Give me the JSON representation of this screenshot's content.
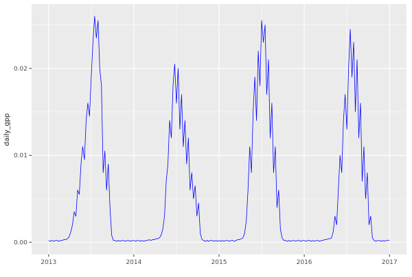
{
  "chart_data": {
    "type": "line",
    "title": "",
    "xlabel": "",
    "ylabel": "daily_gpp",
    "legend": "none",
    "grid": "on",
    "x_axis": {
      "lim": [
        2012.8,
        2017.2
      ],
      "ticks": [
        2013,
        2014,
        2015,
        2016,
        2017
      ],
      "tick_labels": [
        "2013",
        "2014",
        "2015",
        "2016",
        "2017"
      ],
      "minor_ticks": [
        2013.5,
        2014.5,
        2015.5,
        2016.5
      ]
    },
    "y_axis": {
      "lim": [
        -0.0014,
        0.0274
      ],
      "ticks": [
        0,
        0.01,
        0.02
      ],
      "tick_labels": [
        "0.00",
        "0.01",
        "0.02"
      ],
      "minor_ticks": [
        0.005,
        0.015,
        0.025
      ]
    },
    "series": [
      {
        "name": "daily_gpp",
        "color": "#0000FF",
        "x_start": 2013.0,
        "x_step": 0.02,
        "values": [
          0.0002,
          0.0001,
          0.0002,
          0.0001,
          0.0002,
          0.0002,
          0.0001,
          0.0002,
          0.0002,
          0.0003,
          0.0003,
          0.0004,
          0.0006,
          0.0012,
          0.002,
          0.0035,
          0.003,
          0.006,
          0.0055,
          0.009,
          0.011,
          0.0095,
          0.014,
          0.016,
          0.0145,
          0.019,
          0.023,
          0.026,
          0.0235,
          0.0255,
          0.02,
          0.018,
          0.008,
          0.0105,
          0.006,
          0.009,
          0.004,
          0.0008,
          0.0002,
          0.0002,
          0.0001,
          0.0002,
          0.0001,
          0.0002,
          0.0002,
          0.0001,
          0.0002,
          0.0002,
          0.0001,
          0.0002,
          0.0002,
          0.0001,
          0.0002,
          0.0002,
          0.0001,
          0.0002,
          0.0001,
          0.0002,
          0.0002,
          0.0003,
          0.0002,
          0.0003,
          0.0003,
          0.0004,
          0.0004,
          0.0005,
          0.0008,
          0.0015,
          0.003,
          0.007,
          0.009,
          0.014,
          0.012,
          0.018,
          0.0205,
          0.016,
          0.02,
          0.013,
          0.017,
          0.011,
          0.014,
          0.009,
          0.012,
          0.006,
          0.008,
          0.005,
          0.0065,
          0.003,
          0.0045,
          0.001,
          0.0003,
          0.0002,
          0.0001,
          0.0002,
          0.0001,
          0.0002,
          0.0002,
          0.0001,
          0.0002,
          0.0001,
          0.0002,
          0.0001,
          0.0002,
          0.0001,
          0.0002,
          0.0002,
          0.0001,
          0.0002,
          0.0002,
          0.0001,
          0.0002,
          0.0003,
          0.0003,
          0.0004,
          0.0005,
          0.001,
          0.0025,
          0.006,
          0.011,
          0.008,
          0.015,
          0.019,
          0.014,
          0.022,
          0.018,
          0.0255,
          0.023,
          0.025,
          0.017,
          0.021,
          0.012,
          0.016,
          0.008,
          0.011,
          0.004,
          0.006,
          0.0015,
          0.0005,
          0.0002,
          0.0002,
          0.0001,
          0.0002,
          0.0001,
          0.0002,
          0.0002,
          0.0001,
          0.0002,
          0.0002,
          0.0001,
          0.0002,
          0.0002,
          0.0001,
          0.0002,
          0.0002,
          0.0001,
          0.0002,
          0.0001,
          0.0002,
          0.0002,
          0.0001,
          0.0002,
          0.0002,
          0.0003,
          0.0003,
          0.0004,
          0.0004,
          0.0005,
          0.0012,
          0.003,
          0.002,
          0.006,
          0.01,
          0.008,
          0.014,
          0.017,
          0.013,
          0.02,
          0.0245,
          0.019,
          0.023,
          0.015,
          0.021,
          0.012,
          0.016,
          0.007,
          0.011,
          0.005,
          0.008,
          0.002,
          0.003,
          0.0005,
          0.0002,
          0.0001,
          0.0002,
          0.0002,
          0.0001,
          0.0002,
          0.0001,
          0.0002,
          0.0002,
          0.0002
        ]
      }
    ],
    "style": {
      "panel_bg": "#EBEBEB",
      "grid_color": "#FFFFFF",
      "axis_text_color": "#4D4D4D",
      "axis_title_color": "#1A1A1A",
      "tick_mark_color": "#333333"
    }
  }
}
